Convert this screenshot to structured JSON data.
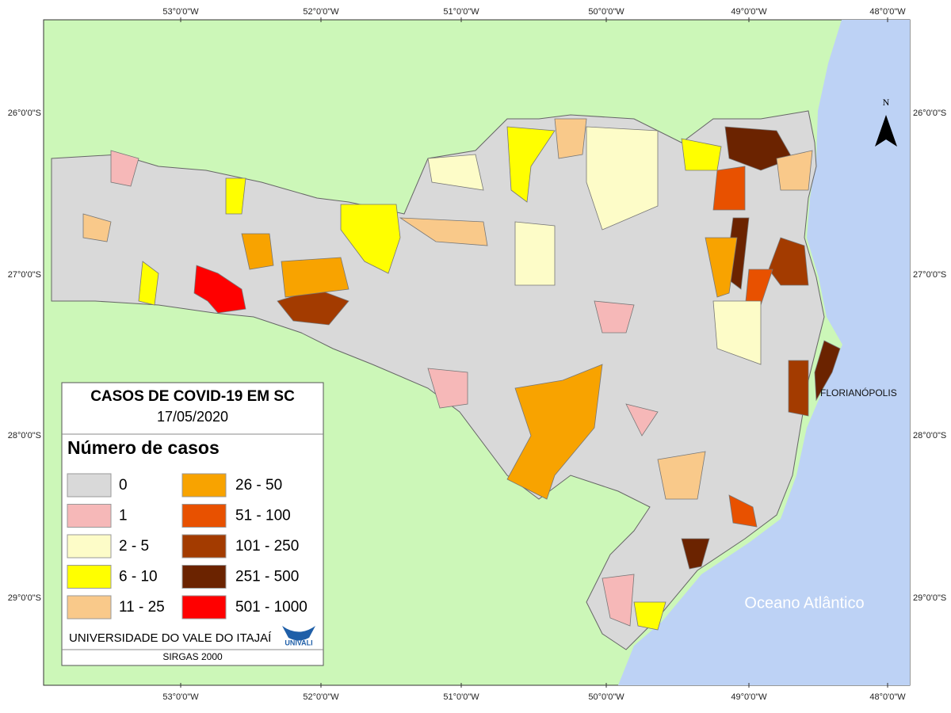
{
  "map": {
    "title": "CASOS DE COVID-19 EM SC",
    "date": "17/05/2020",
    "legend_title": "Número de casos",
    "legend": [
      {
        "label": "0",
        "color": "#d9d9d9"
      },
      {
        "label": "1",
        "color": "#f6b8b8"
      },
      {
        "label": "2 - 5",
        "color": "#fdfcc8"
      },
      {
        "label": "6 - 10",
        "color": "#ffff00"
      },
      {
        "label": "11 - 25",
        "color": "#f9c98a"
      },
      {
        "label": "26 - 50",
        "color": "#f8a300"
      },
      {
        "label": "51 - 100",
        "color": "#e85100"
      },
      {
        "label": "101 - 250",
        "color": "#a33b00"
      },
      {
        "label": "251 - 500",
        "color": "#6b2300"
      },
      {
        "label": "501 - 1000",
        "color": "#ff0000"
      }
    ],
    "credit": "UNIVERSIDADE DO VALE DO ITAJAÍ",
    "logo": "UNIVALI",
    "datum": "SIRGAS 2000",
    "city_label": "FLORIANÓPOLIS",
    "ocean_label": "Oceano Atlântico",
    "north": "N",
    "longitude_labels": [
      "53°0'0\"W",
      "52°0'0\"W",
      "51°0'0\"W",
      "50°0'0\"W",
      "49°0'0\"W",
      "48°0'0\"W"
    ],
    "latitude_labels": [
      "26°0'0\"S",
      "27°0'0\"S",
      "28°0'0\"S",
      "29°0'0\"S"
    ]
  }
}
